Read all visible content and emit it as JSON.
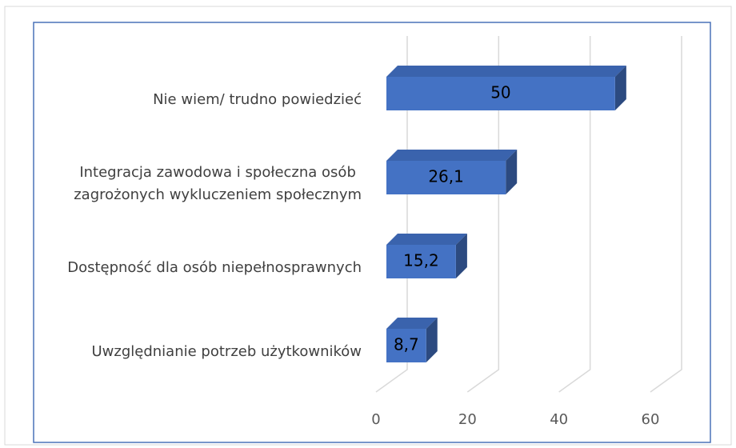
{
  "chart_data": {
    "type": "bar3d_horizontal",
    "categories": [
      "Nie wiem/ trudno powiedzieć",
      "Integracja zawodowa i społeczna osób\nzagrożonych wykluczeniem społecznym",
      "Dostępność dla osób niepełnosprawnych",
      "Uwzględnianie potrzeb użytkowników"
    ],
    "values": [
      50,
      26.1,
      15.2,
      8.7
    ],
    "value_labels": [
      "50",
      "26,1",
      "15,2",
      "8,7"
    ],
    "color": "#4472c4",
    "xlim": [
      0,
      60
    ],
    "xticks": [
      0,
      20,
      40,
      60
    ],
    "grid": true
  }
}
